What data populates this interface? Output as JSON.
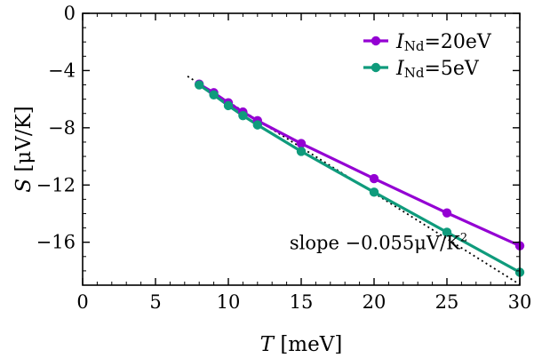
{
  "chart_data": {
    "type": "line",
    "xlabel": {
      "var": "T",
      "unit": " [meV]"
    },
    "ylabel": {
      "var": "S",
      "unit": " [μV/K]"
    },
    "xlim": [
      0,
      30
    ],
    "ylim": [
      -19,
      0
    ],
    "xticks": [
      0,
      5,
      10,
      15,
      20,
      25,
      30
    ],
    "yticks": [
      0,
      -4,
      -8,
      -12,
      -16
    ],
    "ytick_labels": [
      "0",
      "−4",
      "−8",
      "−12",
      "−16"
    ],
    "grid": false,
    "legend_position": "top-right",
    "series": [
      {
        "name": "I_Nd=20eV",
        "label_main": "I",
        "label_sub": "Nd",
        "label_rest": "=20eV",
        "color": "#9400d3",
        "x": [
          8,
          9,
          10,
          11,
          12,
          15,
          20,
          25,
          30
        ],
        "y": [
          -4.95,
          -5.55,
          -6.25,
          -6.9,
          -7.5,
          -9.1,
          -11.55,
          -13.95,
          -16.25
        ]
      },
      {
        "name": "I_Nd=5eV",
        "label_main": "I",
        "label_sub": "Nd",
        "label_rest": "=5eV",
        "color": "#0f9b7c",
        "x": [
          8,
          9,
          10,
          11,
          12,
          15,
          20,
          25,
          30
        ],
        "y": [
          -5.0,
          -5.7,
          -6.45,
          -7.15,
          -7.8,
          -9.65,
          -12.5,
          -15.3,
          -18.1
        ]
      }
    ],
    "reference_line": {
      "style": "dotted",
      "color": "#000000",
      "x": [
        7.2,
        30
      ],
      "y": [
        -4.4,
        -18.95
      ]
    },
    "annotation": {
      "text": "slope −0.055μV/K",
      "superscript": "2",
      "x": 14.2,
      "y": -16.5
    }
  }
}
